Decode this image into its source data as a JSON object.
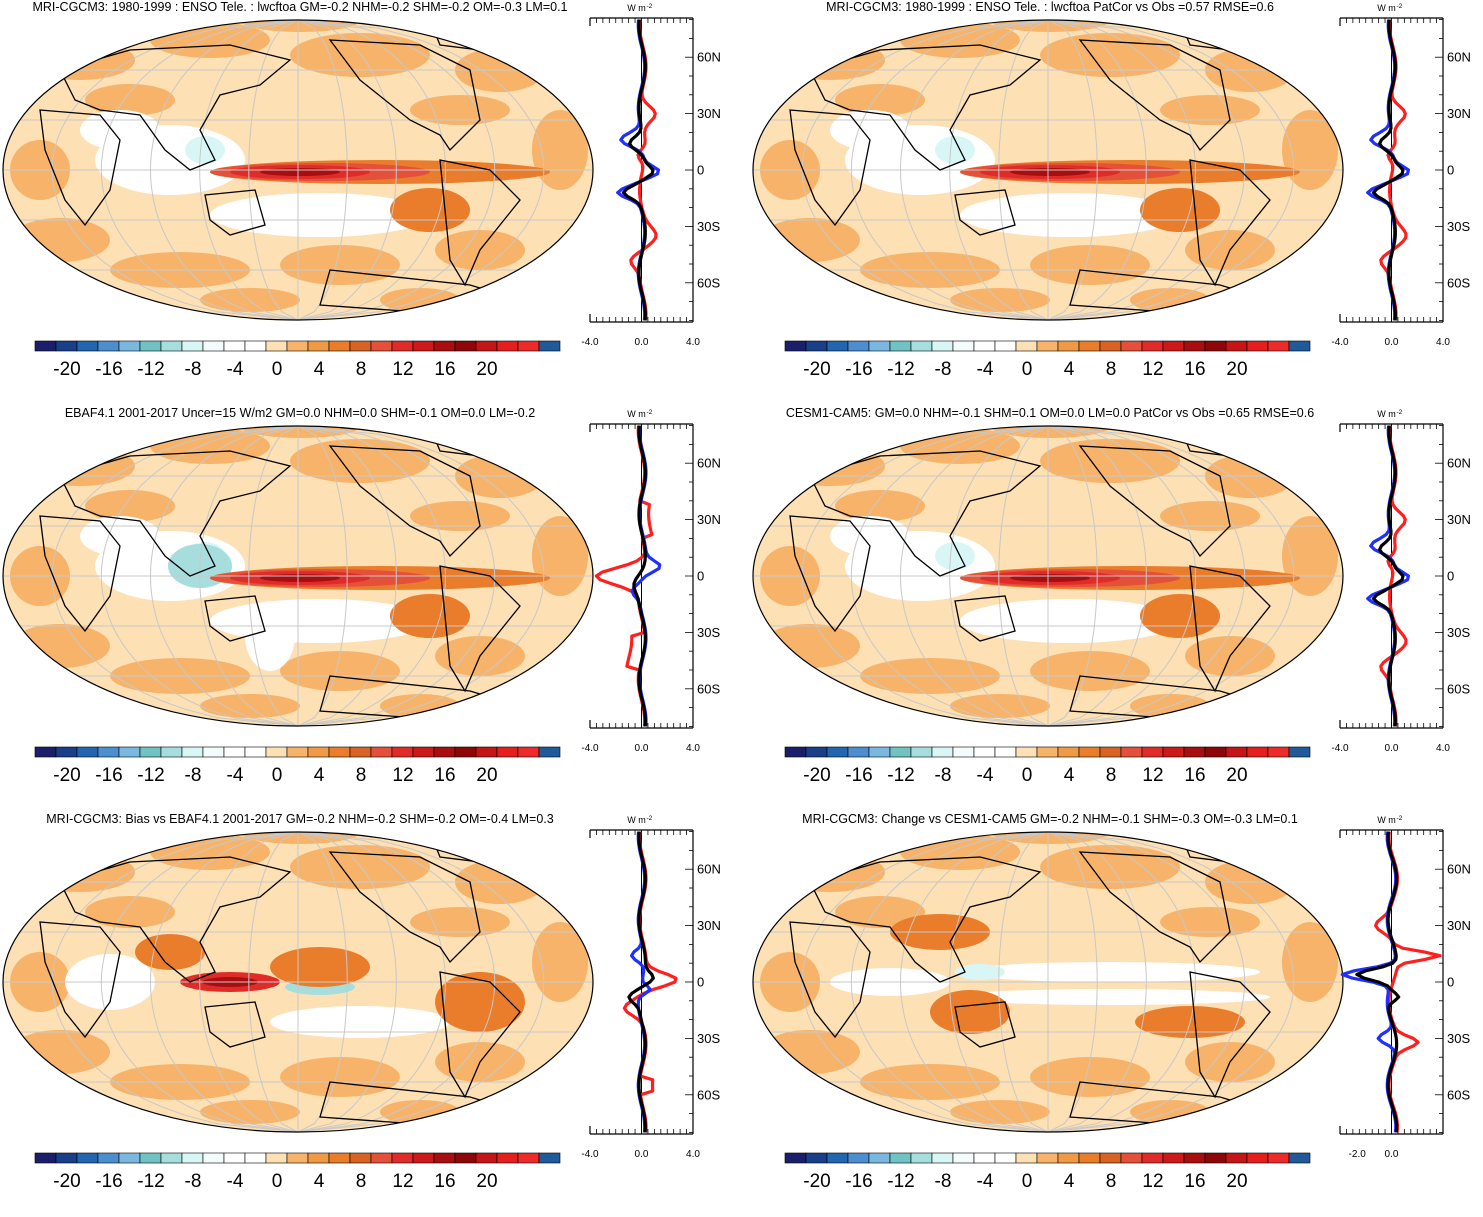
{
  "colorbar": {
    "colors": [
      "#1b1f6b",
      "#1a3f8a",
      "#2265b0",
      "#4c8fd0",
      "#7ab8e0",
      "#6fc3c3",
      "#a6dede",
      "#d9f6f6",
      "#f4fbfb",
      "#ffffff",
      "#ffffff",
      "#fde0b4",
      "#f7b36a",
      "#f19a45",
      "#e97d2c",
      "#d86324",
      "#e4503a",
      "#e02c28",
      "#cc1a1a",
      "#a80e10",
      "#8d0708",
      "#c41616",
      "#e51e1e",
      "#ee2b2b",
      "#205a9a"
    ],
    "tick_labels": [
      "-20",
      "-16",
      "-12",
      "-8",
      "-4",
      "0",
      "4",
      "8",
      "12",
      "16",
      "20"
    ]
  },
  "colors": {
    "obs": "#ff1f1f",
    "model": "#1f2fff",
    "diff": "#000000",
    "grid": "#c8c8c8"
  },
  "unit_label": "W m",
  "unit_exp": "-2",
  "chart_data": [
    {
      "type": "heatmap",
      "title": "MRI-CGCM3: 1980-1999 : ENSO Tele. : lwcftoa GM=-0.2 NHM=-0.2 SHM=-0.2 OM=-0.3 LM=0.1",
      "pattern": "enso",
      "zonal_profile": {
        "lat_ticks": [
          "60N",
          "30N",
          "0",
          "30S",
          "60S"
        ],
        "x_ticks": [
          "-4.0",
          "0.0",
          "4.0"
        ],
        "xlim": [
          -4,
          4
        ],
        "lines": [
          "diff",
          "model",
          "obs"
        ]
      }
    },
    {
      "type": "heatmap",
      "title": "MRI-CGCM3: 1980-1999 : ENSO Tele. : lwcftoa PatCor vs Obs =0.57 RMSE=0.6",
      "pattern": "enso",
      "zonal_profile": {
        "lat_ticks": [
          "60N",
          "30N",
          "0",
          "30S",
          "60S"
        ],
        "x_ticks": [
          "-4.0",
          "0.0",
          "4.0"
        ],
        "xlim": [
          -4,
          4
        ],
        "lines": [
          "diff",
          "model",
          "obs"
        ]
      }
    },
    {
      "type": "heatmap",
      "title": "EBAF4.1 2001-2017 Uncer=15 W/m2 GM=0.0 NHM=0.0 SHM=-0.1 OM=0.0 LM=-0.2",
      "pattern": "obs",
      "zonal_profile": {
        "lat_ticks": [
          "60N",
          "30N",
          "0",
          "30S",
          "60S"
        ],
        "x_ticks": [
          "-4.0",
          "0.0",
          "4.0"
        ],
        "xlim": [
          -4,
          4
        ],
        "lines": [
          "diff",
          "model",
          "obs"
        ]
      }
    },
    {
      "type": "heatmap",
      "title": "CESM1-CAM5: GM=0.0 NHM=-0.1 SHM=0.1 OM=0.0 LM=0.0 PatCor vs Obs =0.65 RMSE=0.6",
      "pattern": "enso",
      "zonal_profile": {
        "lat_ticks": [
          "60N",
          "30N",
          "0",
          "30S",
          "60S"
        ],
        "x_ticks": [
          "-4.0",
          "0.0",
          "4.0"
        ],
        "xlim": [
          -4,
          4
        ],
        "lines": [
          "diff",
          "model",
          "obs"
        ]
      }
    },
    {
      "type": "heatmap",
      "title": "MRI-CGCM3: Bias vs EBAF4.1 2001-2017 GM=-0.2 NHM=-0.2 SHM=-0.2 OM=-0.4 LM=0.3",
      "pattern": "bias",
      "zonal_profile": {
        "lat_ticks": [
          "60N",
          "30N",
          "0",
          "30S",
          "60S"
        ],
        "x_ticks": [
          "-4.0",
          "0.0",
          "4.0"
        ],
        "xlim": [
          -4,
          4
        ],
        "lines": [
          "diff",
          "model",
          "obs"
        ]
      }
    },
    {
      "type": "heatmap",
      "title": "MRI-CGCM3: Change vs CESM1-CAM5 GM=-0.2 NHM=-0.1 SHM=-0.3 OM=-0.3 LM=0.1",
      "pattern": "change",
      "zonal_profile": {
        "lat_ticks": [
          "60N",
          "30N",
          "0",
          "30S",
          "60S"
        ],
        "x_ticks": [
          "-2.0",
          "0.0"
        ],
        "xlim": [
          -3,
          3
        ],
        "lines": [
          "diff",
          "model",
          "obs"
        ]
      }
    }
  ]
}
